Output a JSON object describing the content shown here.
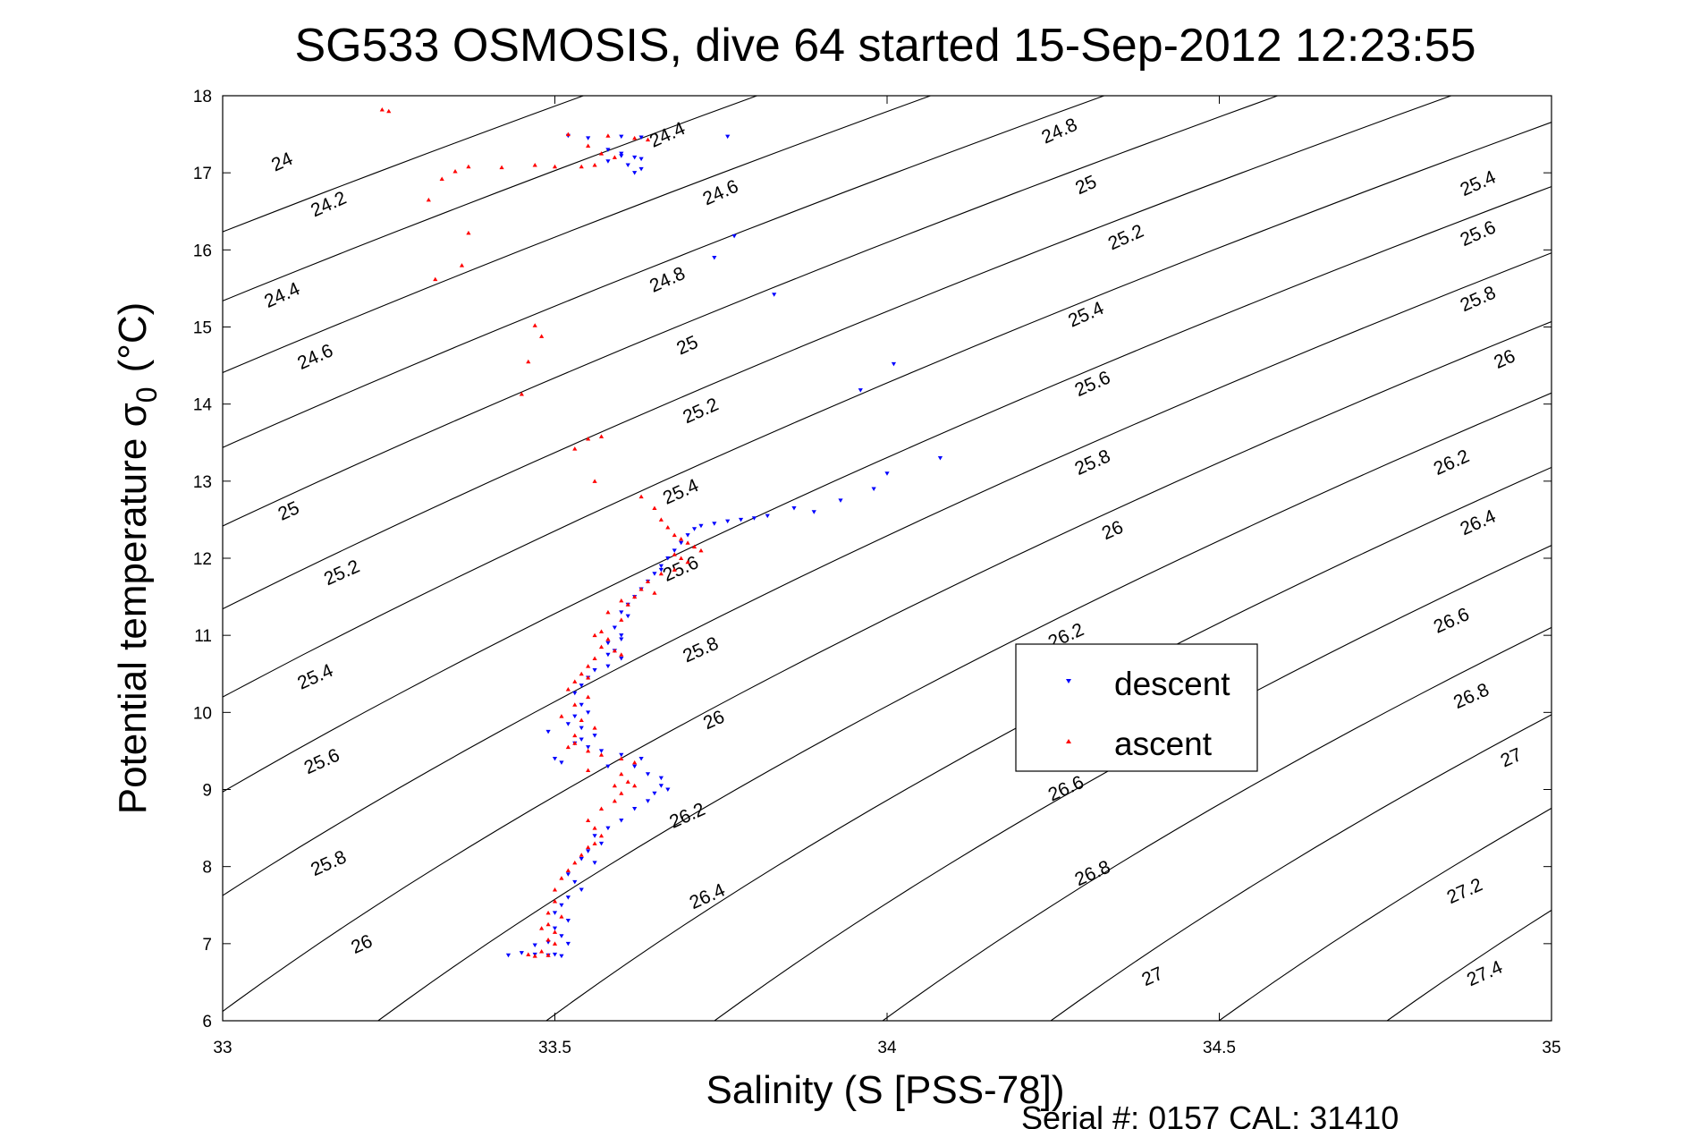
{
  "chart_data": {
    "type": "scatter",
    "title": "SG533 OSMOSIS, dive 64 started 15-Sep-2012 12:23:55",
    "xlabel": "Salinity (S [PSS-78])",
    "ylabel_main": "Potential temperature σ",
    "ylabel_sub": "0",
    "ylabel_unit": "(°C)",
    "footer": "Serial #: 0157  CAL: 31410",
    "xlim": [
      33,
      35
    ],
    "ylim": [
      6,
      18
    ],
    "xticks": [
      33,
      33.5,
      34,
      34.5,
      35
    ],
    "xtick_labels": [
      "33",
      "33.5",
      "34",
      "34.5",
      "35"
    ],
    "yticks": [
      6,
      7,
      8,
      9,
      10,
      11,
      12,
      13,
      14,
      15,
      16,
      17,
      18
    ],
    "ytick_labels": [
      "6",
      "7",
      "8",
      "9",
      "10",
      "11",
      "12",
      "13",
      "14",
      "15",
      "16",
      "17",
      "18"
    ],
    "grid": false,
    "legend_position": "center-right",
    "isopycnals": {
      "levels": [
        24,
        24.2,
        24.4,
        24.6,
        24.8,
        25,
        25.2,
        25.4,
        25.6,
        25.8,
        26,
        26.2,
        26.4,
        26.6,
        26.8,
        27,
        27.2,
        27.4
      ],
      "labels": [
        {
          "text": "24",
          "s": 33.09,
          "t": 17.13
        },
        {
          "text": "24.2",
          "s": 33.16,
          "t": 16.58
        },
        {
          "text": "24.4",
          "s": 33.09,
          "t": 15.4
        },
        {
          "text": "24.6",
          "s": 33.14,
          "t": 14.6
        },
        {
          "text": "25",
          "s": 33.1,
          "t": 12.6
        },
        {
          "text": "25.2",
          "s": 33.18,
          "t": 11.8
        },
        {
          "text": "25.4",
          "s": 33.14,
          "t": 10.45
        },
        {
          "text": "25.6",
          "s": 33.15,
          "t": 9.35
        },
        {
          "text": "25.8",
          "s": 33.16,
          "t": 8.03
        },
        {
          "text": "26",
          "s": 33.21,
          "t": 6.98
        },
        {
          "text": "24.4",
          "s": 33.67,
          "t": 17.48
        },
        {
          "text": "24.6",
          "s": 33.75,
          "t": 16.73
        },
        {
          "text": "24.8",
          "s": 33.67,
          "t": 15.6
        },
        {
          "text": "25",
          "s": 33.7,
          "t": 14.75
        },
        {
          "text": "25.2",
          "s": 33.72,
          "t": 13.9
        },
        {
          "text": "25.4",
          "s": 33.69,
          "t": 12.85
        },
        {
          "text": "25.6",
          "s": 33.69,
          "t": 11.85
        },
        {
          "text": "25.8",
          "s": 33.72,
          "t": 10.8
        },
        {
          "text": "26",
          "s": 33.74,
          "t": 9.89
        },
        {
          "text": "26.2",
          "s": 33.7,
          "t": 8.65
        },
        {
          "text": "26.4",
          "s": 33.73,
          "t": 7.6
        },
        {
          "text": "24.8",
          "s": 34.26,
          "t": 17.53
        },
        {
          "text": "25",
          "s": 34.3,
          "t": 16.83
        },
        {
          "text": "25.2",
          "s": 34.36,
          "t": 16.15
        },
        {
          "text": "25.4",
          "s": 34.3,
          "t": 15.15
        },
        {
          "text": "25.6",
          "s": 34.31,
          "t": 14.25
        },
        {
          "text": "25.8",
          "s": 34.31,
          "t": 13.23
        },
        {
          "text": "26",
          "s": 34.34,
          "t": 12.35
        },
        {
          "text": "26.2",
          "s": 34.27,
          "t": 10.98
        },
        {
          "text": "26.6",
          "s": 34.27,
          "t": 9.0
        },
        {
          "text": "26.8",
          "s": 34.31,
          "t": 7.9
        },
        {
          "text": "27",
          "s": 34.4,
          "t": 6.56
        },
        {
          "text": "25.4",
          "s": 34.89,
          "t": 16.85
        },
        {
          "text": "25.6",
          "s": 34.89,
          "t": 16.2
        },
        {
          "text": "25.8",
          "s": 34.89,
          "t": 15.35
        },
        {
          "text": "26",
          "s": 34.93,
          "t": 14.57
        },
        {
          "text": "26.2",
          "s": 34.85,
          "t": 13.23
        },
        {
          "text": "26.4",
          "s": 34.89,
          "t": 12.45
        },
        {
          "text": "26.6",
          "s": 34.85,
          "t": 11.18
        },
        {
          "text": "26.8",
          "s": 34.88,
          "t": 10.2
        },
        {
          "text": "27",
          "s": 34.94,
          "t": 9.4
        },
        {
          "text": "27.2",
          "s": 34.87,
          "t": 7.67
        },
        {
          "text": "27.4",
          "s": 34.9,
          "t": 6.6
        }
      ]
    },
    "series": [
      {
        "name": "descent",
        "color": "#0000ff",
        "marker": "triangle-down",
        "points": [
          [
            33.52,
            17.48
          ],
          [
            33.55,
            17.45
          ],
          [
            33.6,
            17.47
          ],
          [
            33.63,
            17.46
          ],
          [
            33.76,
            17.47
          ],
          [
            33.58,
            17.3
          ],
          [
            33.6,
            17.25
          ],
          [
            33.62,
            17.2
          ],
          [
            33.63,
            17.18
          ],
          [
            33.61,
            17.1
          ],
          [
            33.63,
            17.05
          ],
          [
            33.6,
            17.22
          ],
          [
            33.62,
            17.0
          ],
          [
            33.58,
            17.15
          ],
          [
            33.77,
            16.18
          ],
          [
            33.74,
            15.9
          ],
          [
            33.83,
            15.42
          ],
          [
            34.01,
            14.52
          ],
          [
            33.96,
            14.18
          ],
          [
            34.08,
            13.3
          ],
          [
            34.0,
            13.1
          ],
          [
            33.98,
            12.9
          ],
          [
            33.93,
            12.75
          ],
          [
            33.89,
            12.6
          ],
          [
            33.86,
            12.65
          ],
          [
            33.82,
            12.55
          ],
          [
            33.8,
            12.52
          ],
          [
            33.78,
            12.5
          ],
          [
            33.76,
            12.48
          ],
          [
            33.74,
            12.45
          ],
          [
            33.72,
            12.42
          ],
          [
            33.71,
            12.38
          ],
          [
            33.7,
            12.3
          ],
          [
            33.69,
            12.2
          ],
          [
            33.68,
            12.1
          ],
          [
            33.67,
            12.0
          ],
          [
            33.66,
            11.9
          ],
          [
            33.65,
            11.8
          ],
          [
            33.64,
            11.7
          ],
          [
            33.66,
            11.85
          ],
          [
            33.63,
            11.6
          ],
          [
            33.62,
            11.5
          ],
          [
            33.61,
            11.4
          ],
          [
            33.6,
            11.3
          ],
          [
            33.61,
            11.25
          ],
          [
            33.59,
            11.1
          ],
          [
            33.6,
            11.0
          ],
          [
            33.58,
            10.9
          ],
          [
            33.6,
            10.95
          ],
          [
            33.59,
            10.8
          ],
          [
            33.58,
            10.75
          ],
          [
            33.6,
            10.7
          ],
          [
            33.58,
            10.6
          ],
          [
            33.56,
            10.55
          ],
          [
            33.55,
            10.45
          ],
          [
            33.54,
            10.35
          ],
          [
            33.53,
            10.25
          ],
          [
            33.54,
            10.1
          ],
          [
            33.55,
            10.0
          ],
          [
            33.53,
            9.95
          ],
          [
            33.52,
            9.85
          ],
          [
            33.54,
            9.8
          ],
          [
            33.56,
            9.7
          ],
          [
            33.53,
            9.6
          ],
          [
            33.55,
            9.55
          ],
          [
            33.51,
            9.35
          ],
          [
            33.57,
            9.5
          ],
          [
            33.6,
            9.45
          ],
          [
            33.63,
            9.4
          ],
          [
            33.62,
            9.3
          ],
          [
            33.64,
            9.2
          ],
          [
            33.66,
            9.15
          ],
          [
            33.67,
            9.0
          ],
          [
            33.65,
            8.95
          ],
          [
            33.64,
            8.85
          ],
          [
            33.62,
            8.75
          ],
          [
            33.6,
            8.6
          ],
          [
            33.58,
            8.5
          ],
          [
            33.56,
            8.4
          ],
          [
            33.57,
            8.3
          ],
          [
            33.55,
            8.2
          ],
          [
            33.54,
            8.1
          ],
          [
            33.56,
            8.05
          ],
          [
            33.52,
            7.9
          ],
          [
            33.53,
            7.8
          ],
          [
            33.54,
            7.7
          ],
          [
            33.52,
            7.6
          ],
          [
            33.51,
            7.5
          ],
          [
            33.5,
            7.4
          ],
          [
            33.52,
            7.3
          ],
          [
            33.5,
            7.2
          ],
          [
            33.51,
            7.1
          ],
          [
            33.52,
            7.0
          ],
          [
            33.49,
            7.02
          ],
          [
            33.47,
            6.98
          ],
          [
            33.43,
            6.85
          ],
          [
            33.45,
            6.88
          ],
          [
            33.47,
            6.86
          ],
          [
            33.49,
            6.85
          ],
          [
            33.5,
            6.86
          ],
          [
            33.51,
            6.84
          ],
          [
            33.49,
            9.75
          ],
          [
            33.5,
            9.4
          ],
          [
            33.54,
            9.65
          ],
          [
            33.58,
            9.3
          ],
          [
            33.66,
            9.05
          ]
        ]
      },
      {
        "name": "ascent",
        "color": "#ff0000",
        "marker": "triangle-up",
        "points": [
          [
            33.24,
            17.82
          ],
          [
            33.25,
            17.8
          ],
          [
            33.52,
            17.5
          ],
          [
            33.58,
            17.48
          ],
          [
            33.62,
            17.45
          ],
          [
            33.64,
            17.43
          ],
          [
            33.55,
            17.35
          ],
          [
            33.57,
            17.25
          ],
          [
            33.59,
            17.2
          ],
          [
            33.56,
            17.1
          ],
          [
            33.54,
            17.08
          ],
          [
            33.5,
            17.08
          ],
          [
            33.47,
            17.1
          ],
          [
            33.42,
            17.07
          ],
          [
            33.37,
            17.08
          ],
          [
            33.33,
            16.92
          ],
          [
            33.35,
            17.02
          ],
          [
            33.31,
            16.65
          ],
          [
            33.37,
            16.22
          ],
          [
            33.36,
            15.8
          ],
          [
            33.32,
            15.62
          ],
          [
            33.47,
            15.02
          ],
          [
            33.48,
            14.88
          ],
          [
            33.46,
            14.55
          ],
          [
            33.45,
            14.13
          ],
          [
            33.55,
            13.55
          ],
          [
            33.57,
            13.58
          ],
          [
            33.53,
            13.42
          ],
          [
            33.56,
            13.0
          ],
          [
            33.63,
            12.8
          ],
          [
            33.65,
            12.65
          ],
          [
            33.66,
            12.5
          ],
          [
            33.67,
            12.4
          ],
          [
            33.68,
            12.3
          ],
          [
            33.69,
            12.25
          ],
          [
            33.7,
            12.2
          ],
          [
            33.71,
            12.15
          ],
          [
            33.72,
            12.1
          ],
          [
            33.68,
            12.05
          ],
          [
            33.69,
            12.0
          ],
          [
            33.7,
            11.95
          ],
          [
            33.68,
            11.85
          ],
          [
            33.66,
            11.8
          ],
          [
            33.64,
            11.7
          ],
          [
            33.63,
            11.6
          ],
          [
            33.65,
            11.55
          ],
          [
            33.62,
            11.5
          ],
          [
            33.6,
            11.45
          ],
          [
            33.61,
            11.4
          ],
          [
            33.58,
            11.3
          ],
          [
            33.6,
            11.2
          ],
          [
            33.57,
            11.05
          ],
          [
            33.56,
            11.0
          ],
          [
            33.58,
            10.95
          ],
          [
            33.57,
            10.85
          ],
          [
            33.59,
            10.8
          ],
          [
            33.6,
            10.75
          ],
          [
            33.56,
            10.7
          ],
          [
            33.55,
            10.6
          ],
          [
            33.54,
            10.5
          ],
          [
            33.55,
            10.45
          ],
          [
            33.53,
            10.4
          ],
          [
            33.52,
            10.3
          ],
          [
            33.55,
            10.2
          ],
          [
            33.53,
            10.1
          ],
          [
            33.51,
            9.95
          ],
          [
            33.54,
            9.9
          ],
          [
            33.56,
            9.8
          ],
          [
            33.53,
            9.7
          ],
          [
            33.52,
            9.55
          ],
          [
            33.55,
            9.5
          ],
          [
            33.57,
            9.45
          ],
          [
            33.6,
            9.4
          ],
          [
            33.62,
            9.35
          ],
          [
            33.6,
            9.2
          ],
          [
            33.61,
            9.1
          ],
          [
            33.62,
            9.05
          ],
          [
            33.6,
            8.95
          ],
          [
            33.59,
            8.85
          ],
          [
            33.57,
            8.75
          ],
          [
            33.55,
            8.6
          ],
          [
            33.56,
            8.5
          ],
          [
            33.57,
            8.4
          ],
          [
            33.56,
            8.3
          ],
          [
            33.55,
            8.25
          ],
          [
            33.54,
            8.15
          ],
          [
            33.53,
            8.05
          ],
          [
            33.52,
            7.95
          ],
          [
            33.51,
            7.85
          ],
          [
            33.5,
            7.7
          ],
          [
            33.5,
            7.55
          ],
          [
            33.49,
            7.4
          ],
          [
            33.51,
            7.35
          ],
          [
            33.49,
            7.25
          ],
          [
            33.48,
            7.2
          ],
          [
            33.5,
            7.15
          ],
          [
            33.49,
            7.05
          ],
          [
            33.5,
            7.0
          ],
          [
            33.48,
            6.9
          ],
          [
            33.46,
            6.86
          ],
          [
            33.47,
            6.84
          ],
          [
            33.49,
            6.85
          ],
          [
            33.53,
            9.6
          ],
          [
            33.55,
            9.25
          ],
          [
            33.59,
            9.05
          ]
        ]
      }
    ]
  }
}
